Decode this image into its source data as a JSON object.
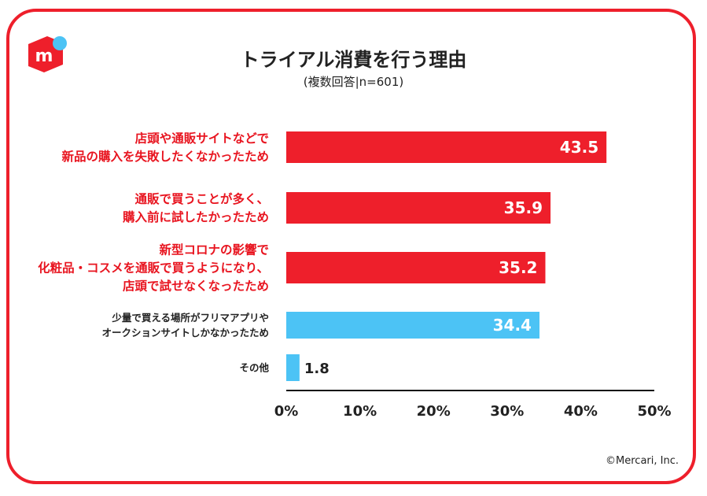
{
  "header": {
    "title": "トライアル消費を行う理由",
    "subtitle": "(複数回答|n=601)",
    "logo_letter": "m"
  },
  "footer": {
    "copyright": "©Mercari, Inc."
  },
  "colors": {
    "highlight": "#ee1f2b",
    "normal": "#4cc3f5",
    "frame": "#ee1f2b",
    "label_text_red": "#e8141f",
    "label_text_dark": "#222222"
  },
  "chart_data": {
    "type": "bar",
    "orientation": "horizontal",
    "title": "トライアル消費を行う理由",
    "subtitle": "(複数回答|n=601)",
    "categories": [
      [
        "店頭や通販サイトなどで",
        "新品の購入を失敗したくなかったため"
      ],
      [
        "通販で買うことが多く、",
        "購入前に試したかったため"
      ],
      [
        "新型コロナの影響で",
        "化粧品・コスメを通販で買うようになり、",
        "店頭で試せなくなったため"
      ],
      [
        "少量で買える場所がフリマアプリや",
        "オークションサイトしかなかったため"
      ],
      [
        "その他"
      ]
    ],
    "values": [
      43.5,
      35.9,
      35.2,
      34.4,
      1.8
    ],
    "highlighted": [
      true,
      true,
      true,
      false,
      false
    ],
    "xlim": [
      0,
      50
    ],
    "xticks": [
      "0%",
      "10%",
      "20%",
      "30%",
      "40%",
      "50%"
    ],
    "xlabel": "",
    "ylabel": "",
    "grid": false,
    "value_labels": [
      "43.5",
      "35.9",
      "35.2",
      "34.4",
      "1.8"
    ]
  }
}
